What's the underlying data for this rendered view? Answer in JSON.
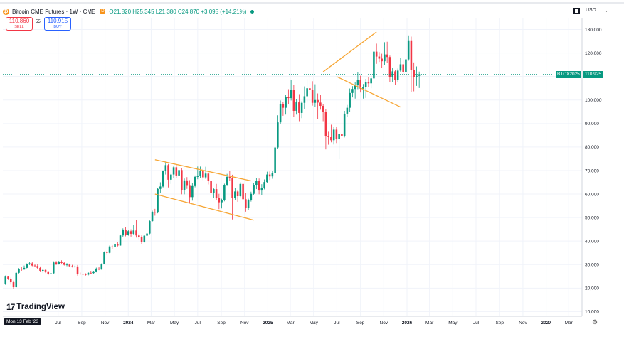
{
  "header": {
    "logo_glyph": "₿",
    "symbol": "Bitcoin CME Futures · 1W · CME",
    "badge": "D",
    "ohlc": "O21,820  H25,345  L21,380  C24,870  +3,095 (+14.21%)"
  },
  "trade": {
    "sell_price": "110,860",
    "sell_label": "SELL",
    "spread": "55",
    "buy_price": "110,915",
    "buy_label": "BUY"
  },
  "currency": "USD",
  "current": {
    "symbol": "BTCX2025",
    "price": "110,925",
    "value": 110925
  },
  "branding": "TradingView",
  "crosshair_date": "Mon 13 Feb '23",
  "icons": {
    "chevron": "chevron-down-icon",
    "settings": "gear-icon",
    "panel": "pane-icon"
  },
  "colors": {
    "up": "#089981",
    "down": "#f23645",
    "pattern": "#f7a634",
    "price": "#089981"
  },
  "chart_data": {
    "type": "candlestick",
    "y_axis": {
      "ylim": [
        8000,
        135000
      ],
      "ticks": [
        10000,
        20000,
        30000,
        40000,
        50000,
        60000,
        70000,
        80000,
        90000,
        100000,
        110000,
        120000,
        130000
      ],
      "tick_labels": [
        "10,000",
        "20,000",
        "30,000",
        "40,000",
        "50,000",
        "60,000",
        "70,000",
        "80,000",
        "90,000",
        "100,000",
        "110,000",
        "120,000",
        "130,000"
      ]
    },
    "x_axis": {
      "xlim": [
        "2023-02-06",
        "2027-04-05"
      ],
      "ticks": [
        "2023-07-01",
        "2023-09-01",
        "2023-11-01",
        "2024-01-01",
        "2024-03-01",
        "2024-05-01",
        "2024-07-01",
        "2024-09-01",
        "2024-11-01",
        "2025-01-01",
        "2025-03-01",
        "2025-05-01",
        "2025-07-01",
        "2025-09-01",
        "2025-11-01",
        "2026-01-01",
        "2026-03-01",
        "2026-05-01",
        "2026-07-01",
        "2026-09-01",
        "2026-11-01",
        "2027-01-01",
        "2027-03-01"
      ],
      "tick_labels": [
        "Jul",
        "Sep",
        "Nov",
        "2024",
        "Mar",
        "May",
        "Jul",
        "Sep",
        "Nov",
        "2025",
        "Mar",
        "May",
        "Jul",
        "Sep",
        "Nov",
        "2026",
        "Mar",
        "May",
        "Jul",
        "Sep",
        "Nov",
        "2027",
        "Mar"
      ]
    },
    "series": [
      {
        "weeks_start": "2023-02-13",
        "ohlc": [
          [
            21820,
            25345,
            21380,
            24870
          ],
          [
            24870,
            25000,
            23500,
            24000
          ],
          [
            24000,
            24500,
            21500,
            22500
          ],
          [
            22500,
            23200,
            19800,
            20400
          ],
          [
            20400,
            26800,
            20200,
            26500
          ],
          [
            26500,
            28500,
            26200,
            28200
          ],
          [
            28200,
            29100,
            27300,
            27900
          ],
          [
            27900,
            29600,
            27800,
            28600
          ],
          [
            28600,
            30500,
            28400,
            30100
          ],
          [
            30100,
            31000,
            29800,
            30500
          ],
          [
            30500,
            31200,
            29300,
            29600
          ],
          [
            29600,
            30200,
            28900,
            29400
          ],
          [
            29400,
            30100,
            28200,
            28600
          ],
          [
            28600,
            29200,
            26800,
            27300
          ],
          [
            27300,
            28000,
            26600,
            27700
          ],
          [
            27700,
            28100,
            26400,
            26800
          ],
          [
            26800,
            27200,
            25500,
            25900
          ],
          [
            25900,
            26700,
            25700,
            26300
          ],
          [
            26300,
            31400,
            25900,
            30900
          ],
          [
            30900,
            31500,
            29800,
            30300
          ],
          [
            30300,
            31600,
            30000,
            31100
          ],
          [
            31100,
            31800,
            30400,
            30700
          ],
          [
            30700,
            31000,
            29600,
            29900
          ],
          [
            29900,
            30600,
            29300,
            30000
          ],
          [
            30000,
            30400,
            28900,
            29300
          ],
          [
            29300,
            29900,
            28800,
            29100
          ],
          [
            29100,
            29600,
            28700,
            29200
          ],
          [
            29200,
            29800,
            25300,
            26100
          ],
          [
            26100,
            26600,
            25700,
            26000
          ],
          [
            26000,
            26200,
            25500,
            25800
          ],
          [
            25800,
            26300,
            25300,
            25700
          ],
          [
            25700,
            26700,
            25400,
            26500
          ],
          [
            26500,
            27200,
            25900,
            26400
          ],
          [
            26400,
            27100,
            26100,
            26800
          ],
          [
            26800,
            28700,
            26700,
            28300
          ],
          [
            28300,
            28900,
            27600,
            27900
          ],
          [
            27900,
            30500,
            27800,
            30200
          ],
          [
            30200,
            35600,
            30100,
            35300
          ],
          [
            35300,
            35900,
            34100,
            35000
          ],
          [
            35000,
            38100,
            34800,
            37700
          ],
          [
            37700,
            38300,
            36700,
            37400
          ],
          [
            37400,
            39100,
            37200,
            38800
          ],
          [
            38800,
            39500,
            37700,
            38100
          ],
          [
            38100,
            42800,
            38000,
            42400
          ],
          [
            42400,
            45400,
            41700,
            44900
          ],
          [
            44900,
            45800,
            42000,
            42500
          ],
          [
            42500,
            44600,
            42300,
            44200
          ],
          [
            44200,
            45000,
            41900,
            43100
          ],
          [
            43100,
            46800,
            42800,
            44500
          ],
          [
            44500,
            49100,
            41500,
            42400
          ],
          [
            42400,
            43200,
            40800,
            41700
          ],
          [
            41700,
            42400,
            38600,
            39500
          ],
          [
            39500,
            42600,
            39300,
            42300
          ],
          [
            42300,
            43800,
            41900,
            43200
          ],
          [
            43200,
            48800,
            42900,
            48500
          ],
          [
            48500,
            52900,
            48300,
            52400
          ],
          [
            52400,
            53700,
            50800,
            52100
          ],
          [
            52100,
            62500,
            51800,
            62200
          ],
          [
            62200,
            65000,
            60400,
            63200
          ],
          [
            63200,
            70100,
            62800,
            69800
          ],
          [
            69800,
            73800,
            68300,
            72300
          ],
          [
            72300,
            72800,
            62800,
            66100
          ],
          [
            66100,
            69200,
            64300,
            68300
          ],
          [
            68300,
            71900,
            66900,
            71400
          ],
          [
            71400,
            72400,
            66800,
            67900
          ],
          [
            67900,
            71400,
            65500,
            70200
          ],
          [
            70200,
            71100,
            59900,
            61800
          ],
          [
            61800,
            66600,
            59900,
            65800
          ],
          [
            65800,
            67200,
            62200,
            63500
          ],
          [
            63500,
            65900,
            56300,
            58700
          ],
          [
            58700,
            64800,
            57200,
            63400
          ],
          [
            63400,
            67900,
            62900,
            67300
          ],
          [
            67300,
            71700,
            66300,
            67800
          ],
          [
            67800,
            71700,
            66700,
            69800
          ],
          [
            69800,
            70800,
            65900,
            67100
          ],
          [
            67100,
            71600,
            66400,
            68700
          ],
          [
            68700,
            69200,
            64100,
            65600
          ],
          [
            65600,
            67500,
            58500,
            60400
          ],
          [
            60400,
            62400,
            58200,
            62100
          ],
          [
            62100,
            64300,
            57500,
            58400
          ],
          [
            58400,
            60100,
            53600,
            56500
          ],
          [
            56500,
            58000,
            53900,
            57400
          ],
          [
            57400,
            64400,
            56900,
            63800
          ],
          [
            63800,
            68600,
            63400,
            67300
          ],
          [
            67300,
            69900,
            65600,
            66700
          ],
          [
            66700,
            68200,
            49200,
            58200
          ],
          [
            58200,
            62500,
            57600,
            61100
          ],
          [
            61100,
            61700,
            56700,
            59100
          ],
          [
            59100,
            65000,
            58700,
            64300
          ],
          [
            64300,
            64800,
            57000,
            57800
          ],
          [
            57800,
            60500,
            52500,
            54200
          ],
          [
            54200,
            58000,
            53300,
            57300
          ],
          [
            57300,
            61000,
            56800,
            60100
          ],
          [
            60100,
            64600,
            59400,
            63900
          ],
          [
            63900,
            66800,
            62100,
            65700
          ],
          [
            65700,
            66600,
            59900,
            61500
          ],
          [
            61500,
            64200,
            59400,
            62500
          ],
          [
            62500,
            66200,
            62000,
            65100
          ],
          [
            65100,
            69500,
            64800,
            68300
          ],
          [
            68300,
            69600,
            66000,
            67500
          ],
          [
            67500,
            69800,
            66500,
            69000
          ],
          [
            69000,
            81000,
            67800,
            79800
          ],
          [
            79800,
            93500,
            79200,
            90500
          ],
          [
            90500,
            99800,
            89700,
            98300
          ],
          [
            98300,
            99300,
            93300,
            96700
          ],
          [
            96700,
            102200,
            93800,
            101300
          ],
          [
            101300,
            104600,
            98100,
            100800
          ],
          [
            100800,
            108700,
            99800,
            104300
          ],
          [
            104300,
            106400,
            92700,
            95400
          ],
          [
            95400,
            100500,
            93800,
            99000
          ],
          [
            99000,
            102500,
            91000,
            94500
          ],
          [
            94500,
            99500,
            92300,
            98800
          ],
          [
            98800,
            105800,
            96300,
            101600
          ],
          [
            101600,
            108900,
            98900,
            105000
          ],
          [
            105000,
            110700,
            99600,
            104400
          ],
          [
            104400,
            108000,
            97600,
            98800
          ],
          [
            98800,
            106700,
            97200,
            100000
          ],
          [
            100000,
            102800,
            92000,
            98900
          ],
          [
            98900,
            102300,
            95900,
            97500
          ],
          [
            97500,
            98300,
            91000,
            94800
          ],
          [
            94800,
            96200,
            79000,
            84500
          ],
          [
            84500,
            86500,
            81000,
            84200
          ],
          [
            84200,
            89500,
            82000,
            82900
          ],
          [
            82900,
            88700,
            81100,
            87400
          ],
          [
            87400,
            88500,
            81700,
            83300
          ],
          [
            83300,
            84800,
            74800,
            85600
          ],
          [
            85600,
            86300,
            83500,
            84500
          ],
          [
            84500,
            95400,
            84100,
            94200
          ],
          [
            94200,
            97900,
            92800,
            96700
          ],
          [
            96700,
            104900,
            95000,
            103000
          ],
          [
            103000,
            105900,
            101100,
            104700
          ],
          [
            104700,
            107800,
            100600,
            106300
          ],
          [
            106300,
            112000,
            104600,
            108600
          ],
          [
            108600,
            110300,
            103200,
            104800
          ],
          [
            104800,
            106800,
            100600,
            105600
          ],
          [
            105600,
            109000,
            100900,
            107600
          ],
          [
            107600,
            109700,
            105600,
            107100
          ],
          [
            107100,
            110100,
            105000,
            109200
          ],
          [
            109200,
            122800,
            108500,
            120600
          ],
          [
            120600,
            124000,
            115400,
            118500
          ],
          [
            118500,
            120400,
            116200,
            117600
          ],
          [
            117600,
            119700,
            113800,
            116500
          ],
          [
            116500,
            124600,
            114900,
            119400
          ],
          [
            119400,
            124800,
            115700,
            118300
          ],
          [
            118300,
            118900,
            107800,
            109900
          ],
          [
            109900,
            113600,
            107500,
            112200
          ],
          [
            112200,
            112700,
            106400,
            108500
          ],
          [
            108500,
            113400,
            107500,
            112500
          ],
          [
            112500,
            117900,
            111700,
            115200
          ],
          [
            115200,
            116800,
            110400,
            111800
          ],
          [
            111800,
            118800,
            108900,
            117300
          ],
          [
            117300,
            127500,
            116700,
            125400
          ],
          [
            125400,
            127000,
            103500,
            112700
          ],
          [
            112700,
            116000,
            103700,
            109700
          ],
          [
            109700,
            114300,
            106000,
            110300
          ],
          [
            110300,
            112100,
            105100,
            110925
          ]
        ]
      }
    ],
    "overlays": [
      {
        "label": "",
        "points": [
          [
            "2024-03-11",
            74600
          ],
          [
            "2024-11-18",
            65600
          ]
        ]
      },
      {
        "label": "",
        "points": [
          [
            "2024-03-11",
            60000
          ],
          [
            "2024-11-25",
            48900
          ]
        ]
      },
      {
        "label": "",
        "points": [
          [
            "2025-05-26",
            112000
          ],
          [
            "2025-10-13",
            129000
          ]
        ]
      },
      {
        "label": "",
        "points": [
          [
            "2025-06-30",
            110000
          ],
          [
            "2025-12-15",
            97000
          ]
        ]
      }
    ]
  }
}
